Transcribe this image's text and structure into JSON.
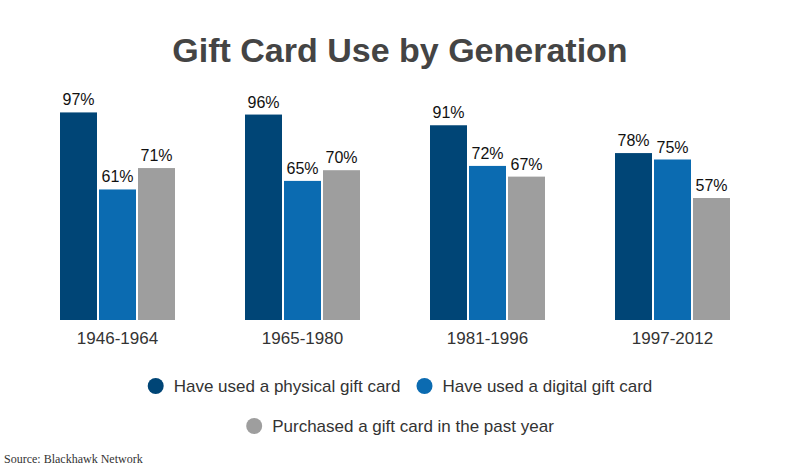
{
  "chart_data": {
    "type": "bar",
    "title": "Gift Card Use by Generation",
    "categories": [
      "1946-1964",
      "1965-1980",
      "1981-1996",
      "1997-2012"
    ],
    "series": [
      {
        "name": "Have used a physical gift card",
        "color": "#004576",
        "values": [
          97,
          96,
          91,
          78
        ],
        "value_labels": [
          "97%",
          "96%",
          "91%",
          "78%"
        ]
      },
      {
        "name": "Have used a digital gift card",
        "color": "#0b6bb1",
        "values": [
          61,
          65,
          72,
          75
        ],
        "value_labels": [
          "61%",
          "65%",
          "72%",
          "75%"
        ]
      },
      {
        "name": "Purchased a gift card in the past year",
        "color": "#9e9e9e",
        "values": [
          71,
          70,
          67,
          57
        ],
        "value_labels": [
          "71%",
          "70%",
          "67%",
          "57%"
        ]
      }
    ],
    "ylim": [
      0,
      100
    ],
    "tick_labels": false,
    "grid": false,
    "data_labels": true,
    "legend": "bottom",
    "source": "Source: Blackhawk Network"
  }
}
